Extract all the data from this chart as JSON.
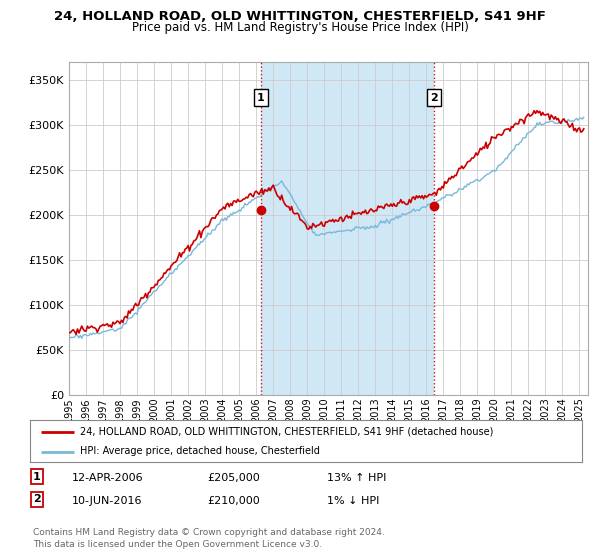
{
  "title_line1": "24, HOLLAND ROAD, OLD WHITTINGTON, CHESTERFIELD, S41 9HF",
  "title_line2": "Price paid vs. HM Land Registry's House Price Index (HPI)",
  "ylabel_ticks": [
    "£0",
    "£50K",
    "£100K",
    "£150K",
    "£200K",
    "£250K",
    "£300K",
    "£350K"
  ],
  "ytick_vals": [
    0,
    50000,
    100000,
    150000,
    200000,
    250000,
    300000,
    350000
  ],
  "ylim": [
    0,
    370000
  ],
  "xlim_start": 1995.0,
  "xlim_end": 2025.5,
  "x_ticks": [
    1995,
    1996,
    1997,
    1998,
    1999,
    2000,
    2001,
    2002,
    2003,
    2004,
    2005,
    2006,
    2007,
    2008,
    2009,
    2010,
    2011,
    2012,
    2013,
    2014,
    2015,
    2016,
    2017,
    2018,
    2019,
    2020,
    2021,
    2022,
    2023,
    2024,
    2025
  ],
  "hpi_color": "#7ab8d9",
  "price_color": "#cc0000",
  "vline_color": "#cc0000",
  "shade_color": "#d0e8f5",
  "marker1_x": 2006.28,
  "marker1_y": 205000,
  "marker2_x": 2016.44,
  "marker2_y": 210000,
  "annotation1": [
    "1",
    "12-APR-2006",
    "£205,000",
    "13% ↑ HPI"
  ],
  "annotation2": [
    "2",
    "10-JUN-2016",
    "£210,000",
    "1% ↓ HPI"
  ],
  "legend_label1": "24, HOLLAND ROAD, OLD WHITTINGTON, CHESTERFIELD, S41 9HF (detached house)",
  "legend_label2": "HPI: Average price, detached house, Chesterfield",
  "footer": "Contains HM Land Registry data © Crown copyright and database right 2024.\nThis data is licensed under the Open Government Licence v3.0.",
  "bg_color": "#ffffff",
  "plot_bg": "#ffffff",
  "grid_color": "#cccccc"
}
